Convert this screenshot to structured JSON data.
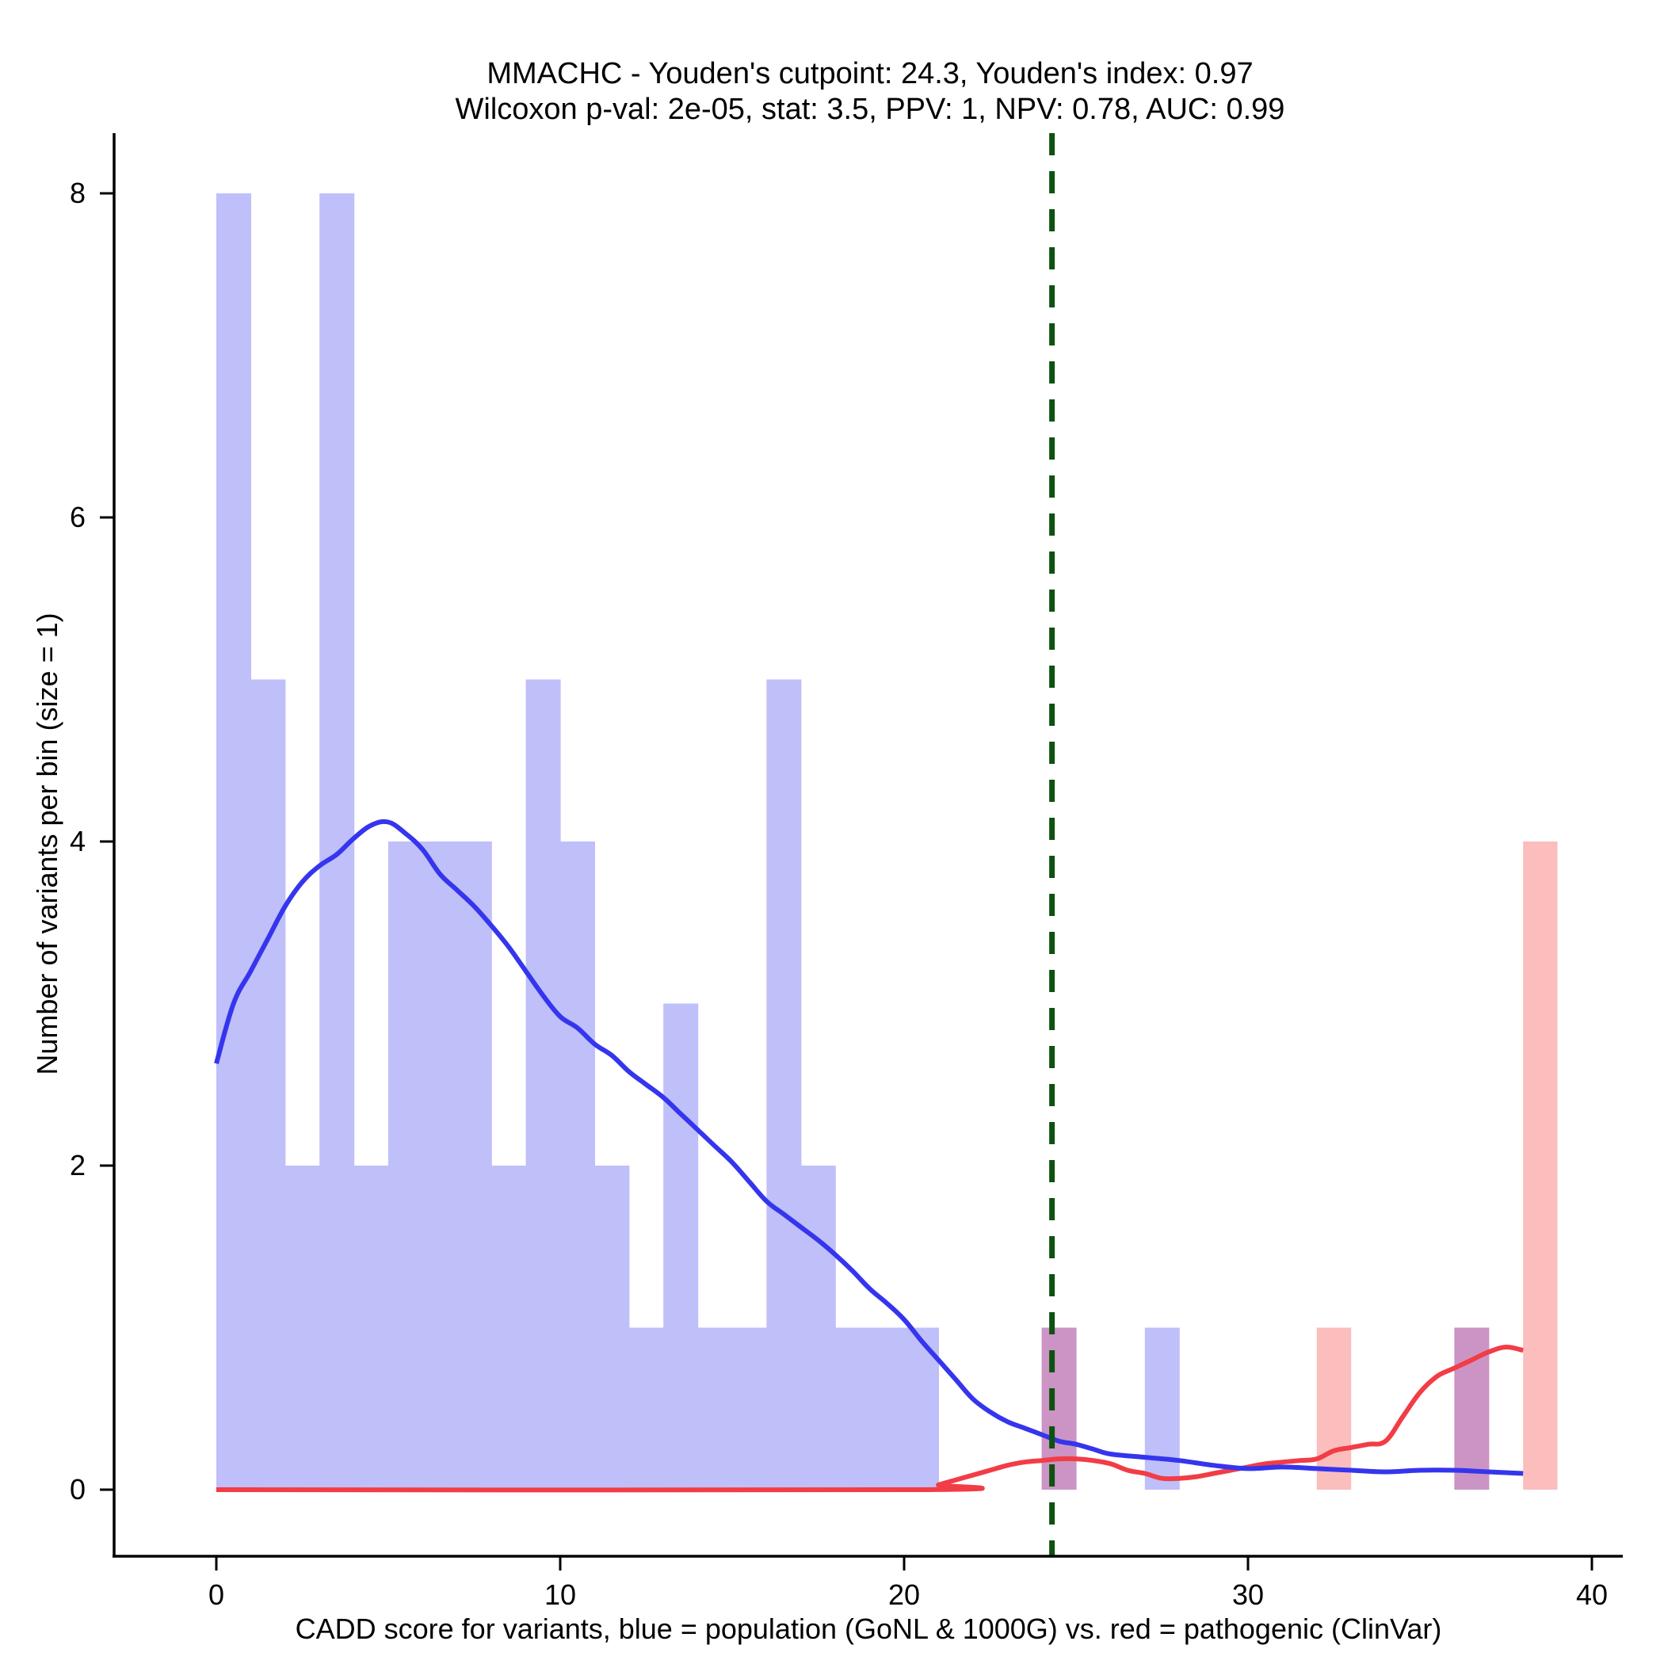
{
  "chart_data": {
    "type": "bar",
    "title_line1": "MMACHC - Youden's cutpoint: 24.3, Youden's index: 0.97",
    "title_line2": "Wilcoxon p-val: 2e-05, stat: 3.5, PPV: 1, NPV: 0.78, AUC: 0.99",
    "xlabel": "CADD score for variants, blue = population (GoNL & 1000G) vs. red = pathogenic (ClinVar)",
    "ylabel": "Number of variants per bin (size = 1)",
    "xlim": [
      -3,
      40.95
    ],
    "ylim": [
      -0.4,
      8.4
    ],
    "xticks": [
      0,
      10,
      20,
      30,
      40
    ],
    "yticks": [
      0,
      2,
      4,
      6,
      8
    ],
    "bin_size": 1,
    "colors": {
      "population_bar": "#bfbffa",
      "pathogenic_bar": "#fcbdbd",
      "overlap_bar": "#cb94c5",
      "population_line": "#3535ee",
      "pathogenic_line": "#f23c46",
      "cutpoint": "#0d5210"
    },
    "cutpoint": 24.3,
    "series": [
      {
        "name": "population (GoNL & 1000G)",
        "bin_starts": [
          0,
          1,
          2,
          3,
          4,
          5,
          6,
          7,
          8,
          9,
          10,
          11,
          12,
          13,
          14,
          15,
          16,
          17,
          18,
          19,
          20,
          24,
          27,
          36
        ],
        "values": [
          8,
          5,
          2,
          8,
          2,
          4,
          4,
          4,
          2,
          5,
          4,
          2,
          1,
          3,
          1,
          1,
          5,
          2,
          1,
          1,
          1,
          1,
          1,
          1
        ]
      },
      {
        "name": "pathogenic (ClinVar)",
        "bin_starts": [
          24,
          32,
          36,
          38
        ],
        "values": [
          1,
          1,
          1,
          4
        ]
      }
    ],
    "density_curves": [
      {
        "name": "population density",
        "x": [
          0,
          0.5,
          1,
          1.5,
          2,
          2.5,
          3,
          3.5,
          4,
          4.5,
          5,
          5.5,
          6,
          6.5,
          7,
          7.5,
          8,
          8.5,
          9,
          9.5,
          10,
          10.5,
          11,
          11.5,
          12,
          12.5,
          13,
          13.5,
          14,
          14.5,
          15,
          15.5,
          16,
          16.5,
          17,
          17.5,
          18,
          18.5,
          19,
          19.5,
          20,
          20.5,
          21,
          21.5,
          22,
          22.5,
          23,
          23.5,
          24,
          24.5,
          25,
          25.5,
          26,
          27,
          28,
          29,
          30,
          31,
          32,
          33,
          34,
          35,
          36,
          37,
          38
        ],
        "y": [
          2.63,
          3.0,
          3.2,
          3.4,
          3.6,
          3.75,
          3.85,
          3.92,
          4.02,
          4.1,
          4.12,
          4.05,
          3.95,
          3.8,
          3.7,
          3.6,
          3.48,
          3.35,
          3.2,
          3.05,
          2.92,
          2.85,
          2.75,
          2.68,
          2.58,
          2.5,
          2.42,
          2.32,
          2.22,
          2.12,
          2.02,
          1.9,
          1.78,
          1.7,
          1.62,
          1.54,
          1.45,
          1.35,
          1.24,
          1.15,
          1.05,
          0.92,
          0.8,
          0.68,
          0.56,
          0.48,
          0.42,
          0.38,
          0.34,
          0.3,
          0.28,
          0.25,
          0.22,
          0.2,
          0.18,
          0.15,
          0.13,
          0.14,
          0.13,
          0.12,
          0.11,
          0.12,
          0.12,
          0.11,
          0.1
        ]
      },
      {
        "name": "pathogenic density",
        "x": [
          0,
          20.5,
          21,
          21.5,
          22,
          22.5,
          23,
          23.5,
          24,
          24.5,
          25,
          25.5,
          26,
          26.5,
          27,
          27.5,
          28,
          28.5,
          29,
          29.5,
          30,
          30.5,
          31,
          31.5,
          32,
          32.5,
          33,
          33.5,
          34,
          34.5,
          35,
          35.5,
          36,
          36.5,
          37,
          37.5,
          38
        ],
        "y": [
          0,
          0,
          0.03,
          0.06,
          0.09,
          0.12,
          0.15,
          0.17,
          0.18,
          0.19,
          0.19,
          0.18,
          0.16,
          0.12,
          0.1,
          0.07,
          0.07,
          0.08,
          0.1,
          0.12,
          0.14,
          0.16,
          0.17,
          0.18,
          0.19,
          0.24,
          0.26,
          0.28,
          0.3,
          0.45,
          0.6,
          0.7,
          0.75,
          0.8,
          0.85,
          0.88,
          0.86
        ]
      }
    ]
  }
}
